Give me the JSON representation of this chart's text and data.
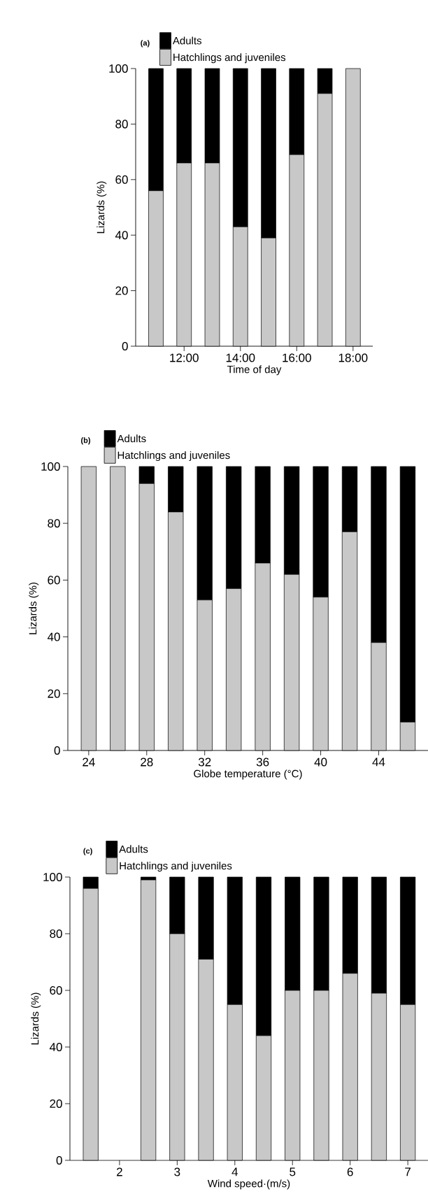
{
  "chart_data": [
    {
      "type": "bar",
      "title": "(a)",
      "stacked": true,
      "xlabel": "Time of day",
      "ylabel": "Lizards (%)",
      "legend": "top",
      "grid": false,
      "categories": [
        null,
        "12:00",
        null,
        "14:00",
        null,
        "16:00",
        null,
        "18:00"
      ],
      "ylim": [
        0,
        100
      ],
      "yticks": [
        0,
        20,
        40,
        60,
        80,
        100
      ],
      "series": [
        {
          "name": "Hatchlings and juveniles",
          "color": "#c8c8c8",
          "values": [
            56,
            66,
            66,
            43,
            39,
            69,
            91,
            100
          ]
        },
        {
          "name": "Adults",
          "color": "#000000",
          "values": [
            44,
            34,
            34,
            57,
            61,
            31,
            9,
            0
          ]
        }
      ]
    },
    {
      "type": "bar",
      "title": "(b)",
      "stacked": true,
      "xlabel": "Globe temperature (°C)",
      "ylabel": "Lizards (%)",
      "legend": "top",
      "grid": false,
      "categories": [
        "24",
        null,
        "28",
        null,
        "32",
        null,
        "36",
        null,
        "40",
        null,
        "44",
        null
      ],
      "ylim": [
        0,
        100
      ],
      "yticks": [
        0,
        20,
        40,
        60,
        80,
        100
      ],
      "series": [
        {
          "name": "Hatchlings and juveniles",
          "color": "#c8c8c8",
          "values": [
            100,
            100,
            94,
            84,
            53,
            57,
            66,
            62,
            54,
            77,
            38,
            10
          ]
        },
        {
          "name": "Adults",
          "color": "#000000",
          "values": [
            0,
            0,
            6,
            16,
            47,
            43,
            34,
            38,
            46,
            23,
            62,
            90
          ]
        }
      ]
    },
    {
      "type": "bar",
      "title": "(c)",
      "stacked": true,
      "xlabel": "Wind speed·(m/s)",
      "ylabel": "Lizards (%)",
      "legend": "top",
      "grid": false,
      "categories": [
        null,
        "2",
        null,
        "3",
        null,
        "4",
        null,
        "5",
        null,
        "6",
        null,
        "7"
      ],
      "ylim": [
        0,
        100
      ],
      "yticks": [
        0,
        20,
        40,
        60,
        80,
        100
      ],
      "series": [
        {
          "name": "Hatchlings and juveniles",
          "color": "#c8c8c8",
          "values": [
            96,
            0,
            99,
            80,
            71,
            55,
            44,
            60,
            60,
            66,
            59,
            55
          ]
        },
        {
          "name": "Adults",
          "color": "#000000",
          "values": [
            4,
            0,
            1,
            20,
            29,
            45,
            56,
            40,
            40,
            34,
            41,
            45
          ]
        }
      ]
    }
  ]
}
